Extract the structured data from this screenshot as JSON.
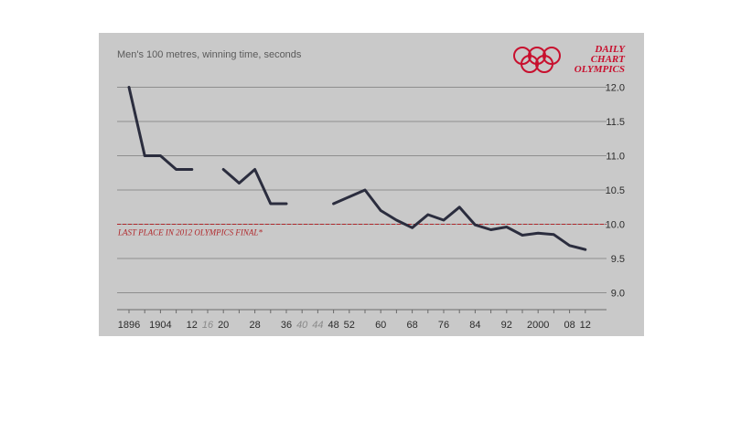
{
  "chart_data": {
    "type": "line",
    "title": "Men's 100 metres, winning time, seconds",
    "branding": [
      "DAILY",
      "CHART",
      "OLYMPICS"
    ],
    "xlabel": "",
    "ylabel": "",
    "ylim": [
      8.75,
      12.35
    ],
    "xlim": [
      1894,
      2014
    ],
    "y_ticks": [
      "12.0",
      "11.5",
      "11.0",
      "10.5",
      "10.0",
      "9.5",
      "9.0"
    ],
    "x_ticks": [
      {
        "label": "1896",
        "year": 1896,
        "muted": false
      },
      {
        "label": "1904",
        "year": 1904,
        "muted": false
      },
      {
        "label": "12",
        "year": 1912,
        "muted": false
      },
      {
        "label": "16",
        "year": 1916,
        "muted": true
      },
      {
        "label": "20",
        "year": 1920,
        "muted": false
      },
      {
        "label": "28",
        "year": 1928,
        "muted": false
      },
      {
        "label": "36",
        "year": 1936,
        "muted": false
      },
      {
        "label": "40",
        "year": 1940,
        "muted": true
      },
      {
        "label": "44",
        "year": 1944,
        "muted": true
      },
      {
        "label": "48",
        "year": 1948,
        "muted": false
      },
      {
        "label": "52",
        "year": 1952,
        "muted": false
      },
      {
        "label": "60",
        "year": 1960,
        "muted": false
      },
      {
        "label": "68",
        "year": 1968,
        "muted": false
      },
      {
        "label": "76",
        "year": 1976,
        "muted": false
      },
      {
        "label": "84",
        "year": 1984,
        "muted": false
      },
      {
        "label": "92",
        "year": 1992,
        "muted": false
      },
      {
        "label": "2000",
        "year": 2000,
        "muted": false
      },
      {
        "label": "08",
        "year": 2008,
        "muted": false
      },
      {
        "label": "12",
        "year": 2012,
        "muted": false
      }
    ],
    "reference_line": {
      "value": 10.0,
      "label": "LAST PLACE IN 2012 OLYMPICS FINAL*"
    },
    "grid": true,
    "colors": {
      "background": "#c9c9c9",
      "line": "#2b2d3e",
      "grid": "#8e8e8e",
      "reference": "#b0262a",
      "brand": "#c8102e"
    },
    "series": [
      {
        "segments": [
          [
            [
              1896,
              12.0
            ],
            [
              1900,
              11.0
            ],
            [
              1904,
              11.0
            ],
            [
              1908,
              10.8
            ],
            [
              1912,
              10.8
            ]
          ],
          [
            [
              1920,
              10.8
            ],
            [
              1924,
              10.6
            ],
            [
              1928,
              10.8
            ],
            [
              1932,
              10.3
            ],
            [
              1936,
              10.3
            ]
          ],
          [
            [
              1948,
              10.3
            ],
            [
              1952,
              10.4
            ],
            [
              1956,
              10.5
            ],
            [
              1960,
              10.2
            ],
            [
              1964,
              10.06
            ],
            [
              1968,
              9.95
            ],
            [
              1972,
              10.14
            ],
            [
              1976,
              10.06
            ],
            [
              1980,
              10.25
            ],
            [
              1984,
              9.99
            ],
            [
              1988,
              9.92
            ],
            [
              1992,
              9.96
            ],
            [
              1996,
              9.84
            ],
            [
              2000,
              9.87
            ],
            [
              2004,
              9.85
            ],
            [
              2008,
              9.69
            ],
            [
              2012,
              9.63
            ]
          ]
        ]
      }
    ]
  }
}
